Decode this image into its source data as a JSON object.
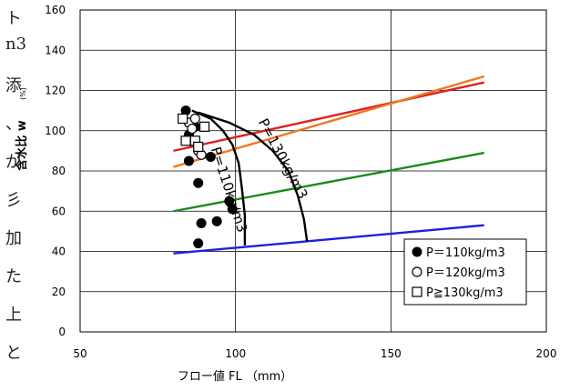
{
  "chart_data": {
    "type": "scatter",
    "xlabel": "フロー値 FL （mm）",
    "ylabel": "含水比 w",
    "ylabel_unit": "(%)",
    "xlim": [
      50,
      200
    ],
    "ylim": [
      0,
      160
    ],
    "x_ticks": [
      "50",
      "100",
      "150",
      "200"
    ],
    "y_ticks": [
      "0",
      "20",
      "40",
      "60",
      "80",
      "100",
      "120",
      "140",
      "160"
    ],
    "grid": true,
    "legend_position": "bottom-right",
    "series": [
      {
        "name": "P＝110kg/m3",
        "marker": "filled-circle",
        "points": [
          [
            84,
            110
          ],
          [
            85,
            98
          ],
          [
            85,
            85
          ],
          [
            87,
            102
          ],
          [
            88,
            74
          ],
          [
            89,
            54
          ],
          [
            88,
            44
          ],
          [
            92,
            87
          ],
          [
            94,
            55
          ],
          [
            98,
            65
          ],
          [
            99,
            61
          ]
        ]
      },
      {
        "name": "P＝120kg/m3",
        "marker": "open-circle",
        "points": [
          [
            85,
            104
          ],
          [
            87,
            106
          ],
          [
            86,
            101
          ],
          [
            88,
            90
          ],
          [
            89,
            88
          ]
        ]
      },
      {
        "name": "P≧130kg/m3",
        "marker": "open-square",
        "points": [
          [
            83,
            106
          ],
          [
            84,
            95
          ],
          [
            87,
            95
          ],
          [
            88,
            92
          ],
          [
            90,
            102
          ]
        ]
      }
    ],
    "lines": [
      {
        "color": "#e02020",
        "points": [
          [
            80,
            90
          ],
          [
            180,
            124
          ]
        ]
      },
      {
        "color": "#f07820",
        "points": [
          [
            80,
            82
          ],
          [
            180,
            127
          ]
        ]
      },
      {
        "color": "#1a8a1a",
        "points": [
          [
            80,
            60
          ],
          [
            180,
            89
          ]
        ]
      },
      {
        "color": "#1f1fe0",
        "points": [
          [
            80,
            39
          ],
          [
            180,
            53
          ]
        ]
      }
    ],
    "curves": [
      {
        "label": "P=110kg/m3",
        "color": "#000000",
        "points": [
          [
            86,
            110
          ],
          [
            92,
            106
          ],
          [
            96,
            100
          ],
          [
            99,
            93
          ],
          [
            101,
            84
          ],
          [
            102,
            72
          ],
          [
            103,
            58
          ],
          [
            103,
            43
          ]
        ]
      },
      {
        "label": "P=130kg/m3",
        "color": "#000000",
        "points": [
          [
            88,
            109
          ],
          [
            98,
            104
          ],
          [
            106,
            98
          ],
          [
            112,
            90
          ],
          [
            117,
            80
          ],
          [
            120,
            68
          ],
          [
            122,
            56
          ],
          [
            123,
            45
          ]
        ]
      }
    ]
  },
  "side_text": [
    "ト",
    "n3",
    "添",
    "、",
    "が",
    "彡",
    "加",
    "た",
    "上",
    "と"
  ]
}
